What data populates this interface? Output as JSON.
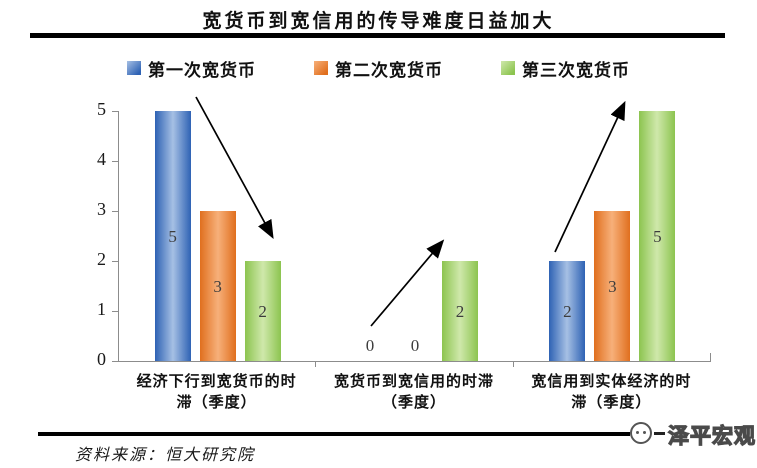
{
  "title": "宽货币到宽信用的传导难度日益加大",
  "chart_data": {
    "type": "bar",
    "title": "宽货币到宽信用的传导难度日益加大",
    "categories": [
      "经济下行到宽货币的时滞（季度）",
      "宽货币到宽信用的时滞（季度）",
      "宽信用到实体经济的时滞（季度）"
    ],
    "category_display_lines": [
      [
        "经济下行到宽货币的时",
        "滞（季度）"
      ],
      [
        "宽货币到宽信用的时滞",
        "（季度）"
      ],
      [
        "宽信用到实体经济的时",
        "滞（季度）"
      ]
    ],
    "series": [
      {
        "name": "第一次宽货币",
        "values": [
          5,
          0,
          2
        ],
        "color_edge": "#2e62b4",
        "color_center": "#a6c0e4"
      },
      {
        "name": "第二次宽货币",
        "values": [
          3,
          0,
          3
        ],
        "color_edge": "#e06f1e",
        "color_center": "#f7b07a"
      },
      {
        "name": "第三次宽货币",
        "values": [
          2,
          2,
          5
        ],
        "color_edge": "#8cc44f",
        "color_center": "#cfe8ab"
      }
    ],
    "xlabel": "",
    "ylabel": "",
    "ylim": [
      0,
      5
    ],
    "yticks": [
      0,
      1,
      2,
      3,
      4,
      5
    ],
    "grid": false,
    "legend_position": "top",
    "data_labels": "inside-center, zeros shown above baseline",
    "annotations": [
      {
        "group": 0,
        "direction": "down",
        "meaning": "values decreasing across series"
      },
      {
        "group": 1,
        "direction": "up",
        "meaning": "values increasing across series"
      },
      {
        "group": 2,
        "direction": "up",
        "meaning": "values increasing across series"
      }
    ],
    "arrow_color": "#000000"
  },
  "footer": {
    "source_label": "资料来源：恒大研究院",
    "brand": "泽平宏观"
  }
}
